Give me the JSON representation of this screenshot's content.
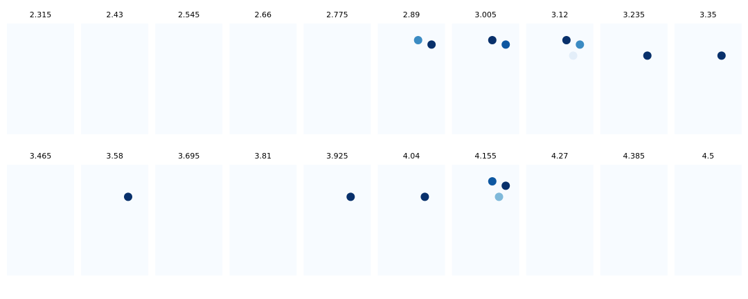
{
  "chart_data": {
    "type": "scatter",
    "layout": "small-multiples",
    "panels": [
      {
        "title": "2.315",
        "points": []
      },
      {
        "title": "2.43",
        "points": []
      },
      {
        "title": "2.545",
        "points": []
      },
      {
        "title": "2.66",
        "points": []
      },
      {
        "title": "2.775",
        "points": []
      },
      {
        "title": "2.89",
        "points": [
          {
            "x": 0.6,
            "y": 0.85,
            "level": 0.65
          },
          {
            "x": 0.8,
            "y": 0.81,
            "level": 1.0
          }
        ]
      },
      {
        "title": "3.005",
        "points": [
          {
            "x": 0.6,
            "y": 0.85,
            "level": 1.0
          },
          {
            "x": 0.8,
            "y": 0.81,
            "level": 0.85
          }
        ]
      },
      {
        "title": "3.12",
        "points": [
          {
            "x": 0.6,
            "y": 0.85,
            "level": 1.0
          },
          {
            "x": 0.8,
            "y": 0.81,
            "level": 0.65
          },
          {
            "x": 0.7,
            "y": 0.71,
            "level": 0.1
          }
        ]
      },
      {
        "title": "3.235",
        "points": [
          {
            "x": 0.7,
            "y": 0.71,
            "level": 1.0
          }
        ]
      },
      {
        "title": "3.35",
        "points": [
          {
            "x": 0.7,
            "y": 0.71,
            "level": 1.0
          }
        ]
      },
      {
        "title": "3.465",
        "points": []
      },
      {
        "title": "3.58",
        "points": [
          {
            "x": 0.7,
            "y": 0.71,
            "level": 1.0
          }
        ]
      },
      {
        "title": "3.695",
        "points": []
      },
      {
        "title": "3.81",
        "points": []
      },
      {
        "title": "3.925",
        "points": [
          {
            "x": 0.7,
            "y": 0.71,
            "level": 1.0
          }
        ]
      },
      {
        "title": "4.04",
        "points": [
          {
            "x": 0.7,
            "y": 0.71,
            "level": 1.0
          }
        ]
      },
      {
        "title": "4.155",
        "points": [
          {
            "x": 0.6,
            "y": 0.85,
            "level": 0.85
          },
          {
            "x": 0.8,
            "y": 0.81,
            "level": 1.0
          },
          {
            "x": 0.7,
            "y": 0.71,
            "level": 0.45
          }
        ]
      },
      {
        "title": "4.27",
        "points": []
      },
      {
        "title": "4.385",
        "points": []
      },
      {
        "title": "4.5",
        "points": []
      }
    ],
    "colormap": "Blues",
    "panel_background": "#f7fbff",
    "xlim": [
      0,
      1
    ],
    "ylim": [
      0,
      1
    ],
    "grid": false,
    "axes_visible": false
  }
}
